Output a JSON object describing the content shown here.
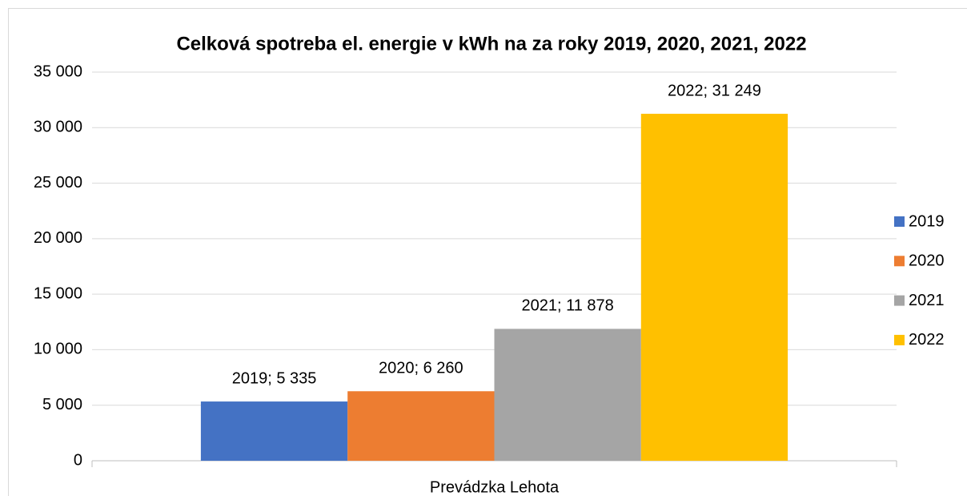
{
  "chart_data": {
    "type": "bar",
    "title": "Celková spotreba el. energie v kWh na za roky 2019, 2020, 2021, 2022",
    "categories": [
      "Prevádzka Lehota"
    ],
    "series": [
      {
        "name": "2019",
        "color": "#4472c4",
        "values": [
          5335
        ],
        "value_labels": [
          "2019; 5 335"
        ]
      },
      {
        "name": "2020",
        "color": "#ed7d31",
        "values": [
          6260
        ],
        "value_labels": [
          "2020; 6 260"
        ]
      },
      {
        "name": "2021",
        "color": "#a5a5a5",
        "values": [
          11878
        ],
        "value_labels": [
          "2021; 11 878"
        ]
      },
      {
        "name": "2022",
        "color": "#ffc000",
        "values": [
          31249
        ],
        "value_labels": [
          "2022; 31 249"
        ]
      }
    ],
    "ylim": [
      0,
      35000
    ],
    "yticks": [
      0,
      {
        "value": 5000,
        "label": "5 000"
      },
      {
        "value": 10000,
        "label": "10 000"
      },
      {
        "value": 15000,
        "label": "15 000"
      },
      {
        "value": 20000,
        "label": "20 000"
      },
      {
        "value": 25000,
        "label": "25 000"
      },
      {
        "value": 30000,
        "label": "30 000"
      },
      {
        "value": 35000,
        "label": "35 000"
      }
    ],
    "grid": true,
    "legend": "right"
  }
}
